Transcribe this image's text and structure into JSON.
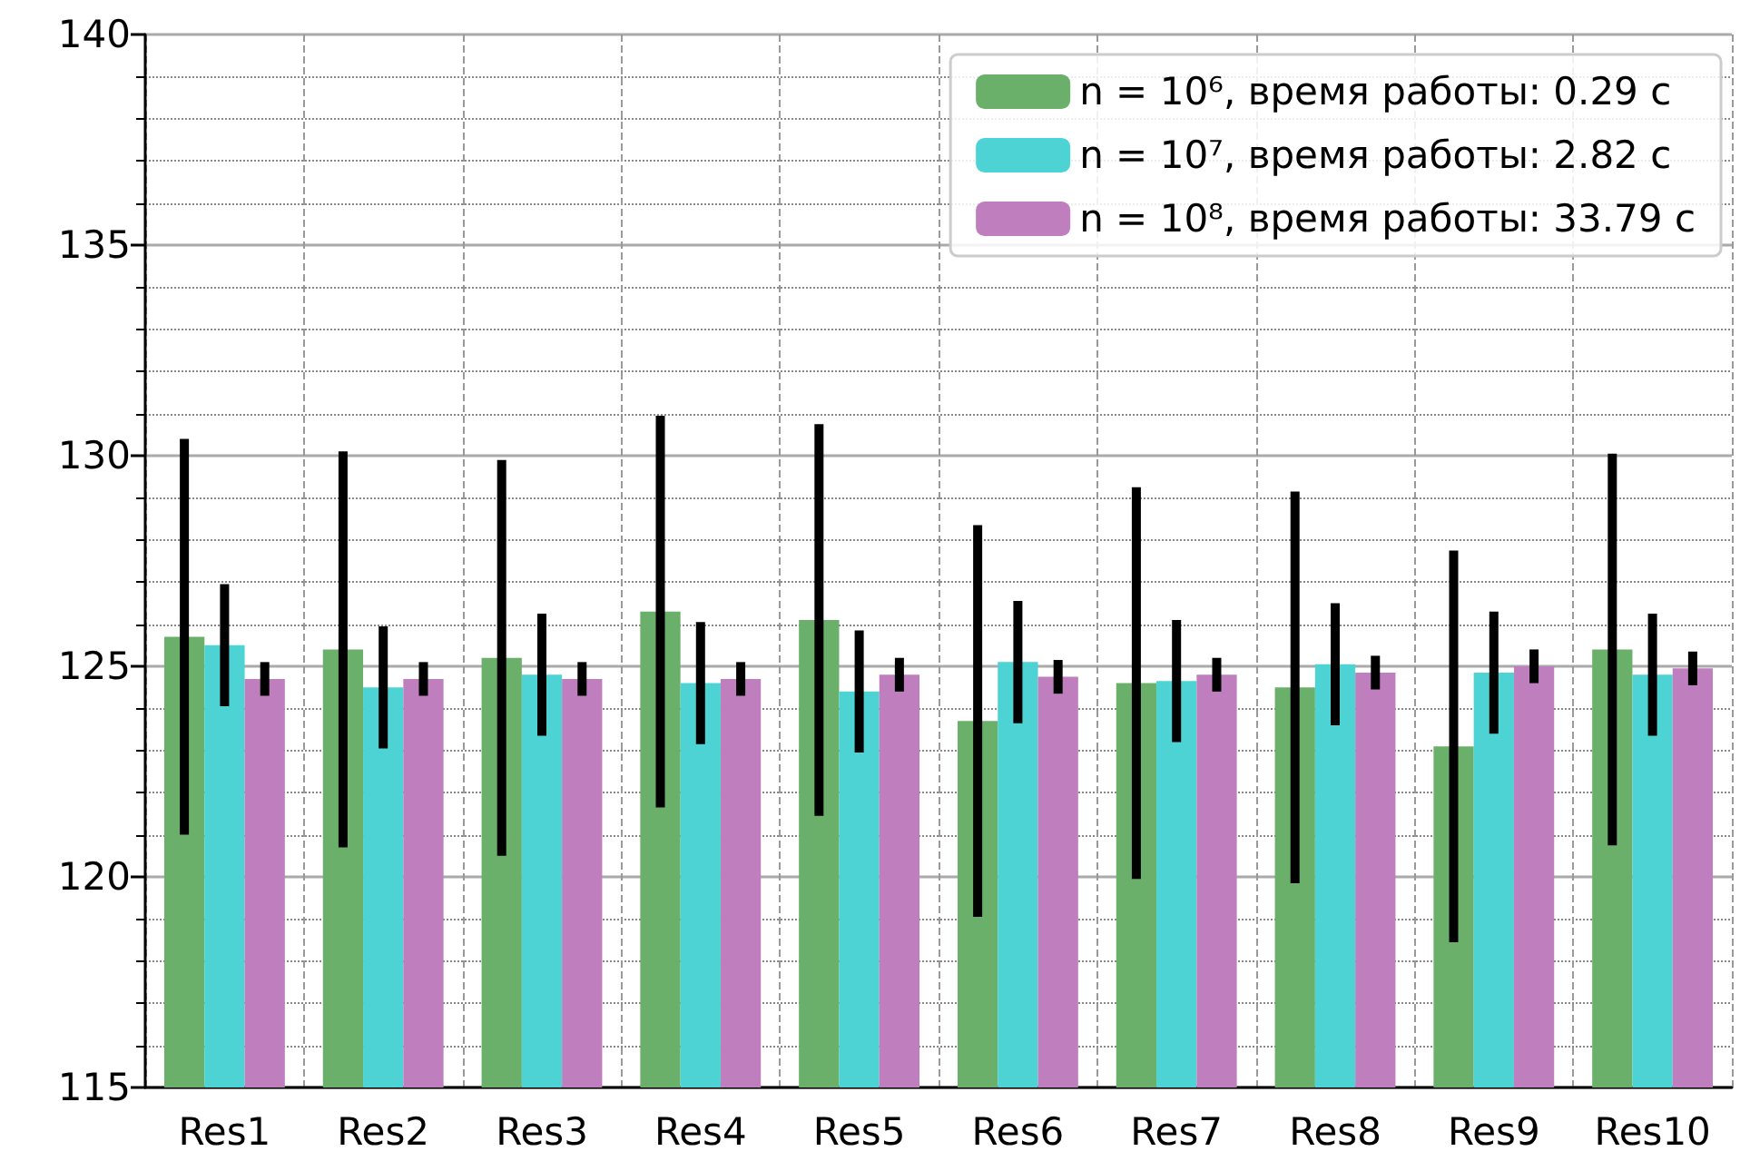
{
  "chart_data": {
    "type": "bar",
    "categories": [
      "Res1",
      "Res2",
      "Res3",
      "Res4",
      "Res5",
      "Res6",
      "Res7",
      "Res8",
      "Res9",
      "Res10"
    ],
    "series": [
      {
        "name": "n = 10⁶, время работы: 0.29 с",
        "color": "#6ab06a",
        "values": [
          125.7,
          125.4,
          125.2,
          126.3,
          126.1,
          123.7,
          124.6,
          124.5,
          123.1,
          125.4
        ],
        "errors": [
          4.7,
          4.7,
          4.7,
          4.65,
          4.65,
          4.65,
          4.65,
          4.65,
          4.65,
          4.65
        ]
      },
      {
        "name": "n = 10⁷, время работы: 2.82 с",
        "color": "#4dd3d3",
        "values": [
          125.5,
          124.5,
          124.8,
          124.6,
          124.4,
          125.1,
          124.65,
          125.05,
          124.85,
          124.8
        ],
        "errors": [
          1.45,
          1.45,
          1.45,
          1.45,
          1.45,
          1.45,
          1.45,
          1.45,
          1.45,
          1.45
        ]
      },
      {
        "name": "n = 10⁸, время работы: 33.79 с",
        "color": "#bf7fbf",
        "values": [
          124.7,
          124.7,
          124.7,
          124.7,
          124.8,
          124.75,
          124.8,
          124.85,
          125.0,
          124.95
        ],
        "errors": [
          0.4,
          0.4,
          0.4,
          0.4,
          0.4,
          0.4,
          0.4,
          0.4,
          0.4,
          0.4
        ]
      }
    ],
    "ylim": [
      115,
      140
    ],
    "yticks": [
      115,
      120,
      125,
      130,
      135,
      140
    ],
    "grid": true,
    "legend": "top right"
  }
}
